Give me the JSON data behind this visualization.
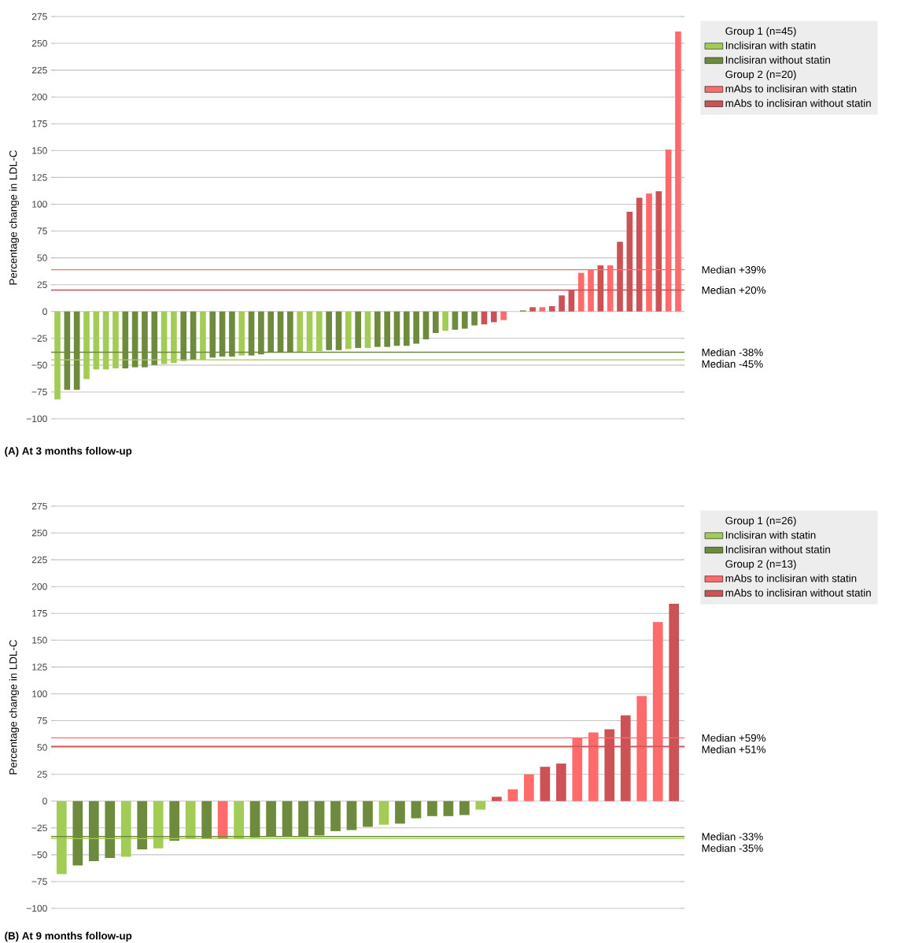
{
  "chart_data": [
    {
      "type": "bar",
      "title": "(A) At 3 months follow-up",
      "ylabel": "Percentage change in LDL-C",
      "categories": [
        null,
        null,
        null,
        null,
        null,
        null,
        null,
        null,
        null,
        null,
        null,
        null,
        null,
        null,
        null,
        null,
        null,
        null,
        null,
        null,
        null,
        null,
        null,
        null,
        null,
        null,
        null,
        null,
        null,
        null,
        null,
        null,
        null,
        null,
        null,
        null,
        null,
        null,
        null,
        null,
        null,
        null,
        null,
        null,
        null,
        null,
        null,
        null,
        null,
        null,
        null,
        null,
        null,
        null,
        null,
        null,
        null,
        null,
        null,
        null,
        null,
        null,
        null,
        null,
        null
      ],
      "series": [
        {
          "name": "Inclisiran with statin",
          "color": "#a3cc56",
          "values": [
            -82,
            null,
            null,
            -63,
            -54,
            -54,
            -53,
            null,
            null,
            null,
            null,
            -49,
            -48,
            null,
            null,
            -45,
            null,
            null,
            null,
            -41,
            null,
            null,
            null,
            null,
            null,
            -38,
            -37,
            -37,
            null,
            null,
            -35,
            null,
            -34,
            null,
            null,
            null,
            null,
            null,
            null,
            null,
            -18,
            null,
            null,
            null,
            null,
            null,
            null,
            null,
            null,
            null,
            null,
            null,
            null,
            null,
            null,
            null,
            null,
            null,
            null,
            null,
            null,
            null,
            null,
            null,
            null
          ]
        },
        {
          "name": "Inclisiran without statin",
          "color": "#6e8a3c",
          "values": [
            null,
            -73,
            -73,
            null,
            null,
            null,
            null,
            -53,
            -52,
            -52,
            -50,
            null,
            null,
            -46,
            -45,
            null,
            -43,
            -42,
            -42,
            null,
            -41,
            -40,
            -38,
            -38,
            -38,
            null,
            null,
            null,
            -36,
            -36,
            null,
            -34,
            null,
            -33,
            -33,
            -32,
            -32,
            -30,
            -26,
            -20,
            null,
            -17,
            -16,
            -13,
            null,
            null,
            null,
            null,
            1,
            null,
            null,
            null,
            null,
            null,
            null,
            null,
            null,
            null,
            null,
            null,
            null,
            null,
            null,
            null,
            null
          ]
        },
        {
          "name": "mAbs to inclisiran with statin",
          "color": "#ff6b6b",
          "values": [
            null,
            null,
            null,
            null,
            null,
            null,
            null,
            null,
            null,
            null,
            null,
            null,
            null,
            null,
            null,
            null,
            null,
            null,
            null,
            null,
            null,
            null,
            null,
            null,
            null,
            null,
            null,
            null,
            null,
            null,
            null,
            null,
            null,
            null,
            null,
            null,
            null,
            null,
            null,
            null,
            null,
            null,
            null,
            null,
            null,
            null,
            -8,
            0,
            null,
            null,
            4,
            null,
            null,
            null,
            36,
            39,
            null,
            43,
            null,
            null,
            null,
            110,
            null,
            151,
            261
          ]
        },
        {
          "name": "mAbs to inclisiran without statin",
          "color": "#cc5256",
          "values": [
            null,
            null,
            null,
            null,
            null,
            null,
            null,
            null,
            null,
            null,
            null,
            null,
            null,
            null,
            null,
            null,
            null,
            null,
            null,
            null,
            null,
            null,
            null,
            null,
            null,
            null,
            null,
            null,
            null,
            null,
            null,
            null,
            null,
            null,
            null,
            null,
            null,
            null,
            null,
            null,
            null,
            null,
            null,
            null,
            -12,
            -10,
            null,
            null,
            null,
            4,
            null,
            5,
            15,
            20,
            null,
            null,
            43,
            null,
            65,
            93,
            106,
            null,
            112,
            null,
            null
          ]
        }
      ],
      "ylim": [
        -100,
        275
      ],
      "yticks": [
        {
          "value": -100,
          "label": "−100"
        },
        {
          "value": -75,
          "label": "−75"
        },
        {
          "value": -50,
          "label": "−50"
        },
        {
          "value": -25,
          "label": "−25"
        },
        0,
        25,
        50,
        75,
        100,
        125,
        150,
        175,
        200,
        225,
        250,
        275
      ],
      "grid": "y",
      "legend": "top right",
      "annotations": [
        "Group 1 (n=45)",
        "Group 2 (n=20)"
      ],
      "ref_lines": [
        {
          "axis": "y",
          "value": 39,
          "label": "Median +39%",
          "color": "#ff6b6b"
        },
        {
          "axis": "y",
          "value": 20,
          "label": "Median +20%",
          "color": "#cc5256"
        },
        {
          "axis": "y",
          "value": -38,
          "label": "Median -38%",
          "color": "#6e8a3c"
        },
        {
          "axis": "y",
          "value": -45,
          "label": "Median -45%",
          "color": "#a3cc56"
        }
      ]
    },
    {
      "type": "bar",
      "title": "(B) At 9 months follow-up",
      "ylabel": "Percentage change in LDL-C",
      "categories": [
        null,
        null,
        null,
        null,
        null,
        null,
        null,
        null,
        null,
        null,
        null,
        null,
        null,
        null,
        null,
        null,
        null,
        null,
        null,
        null,
        null,
        null,
        null,
        null,
        null,
        null,
        null,
        null,
        null,
        null,
        null,
        null,
        null,
        null,
        null,
        null,
        null,
        null,
        null
      ],
      "series": [
        {
          "name": "Inclisiran with statin",
          "color": "#a3cc56",
          "values": [
            -68,
            null,
            null,
            null,
            -52,
            null,
            -44,
            null,
            -35,
            null,
            null,
            -35,
            null,
            null,
            null,
            null,
            null,
            null,
            null,
            null,
            -22,
            null,
            null,
            null,
            null,
            null,
            -8,
            null,
            null,
            null,
            null,
            null,
            null,
            null,
            null,
            null,
            null,
            null,
            null
          ]
        },
        {
          "name": "Inclisiran without statin",
          "color": "#6e8a3c",
          "values": [
            null,
            -60,
            -56,
            -53,
            null,
            -45,
            null,
            -37,
            null,
            -35,
            null,
            null,
            -34,
            -33,
            -33,
            -33,
            -32,
            -28,
            -27,
            -24,
            null,
            -21,
            -16,
            -14,
            -14,
            -13,
            null,
            null,
            null,
            null,
            null,
            null,
            null,
            null,
            null,
            null,
            null,
            null,
            null
          ]
        },
        {
          "name": "mAbs to inclisiran with statin",
          "color": "#ff6b6b",
          "values": [
            null,
            null,
            null,
            null,
            null,
            null,
            null,
            null,
            null,
            null,
            -35,
            null,
            null,
            null,
            null,
            null,
            null,
            null,
            null,
            null,
            null,
            null,
            null,
            null,
            null,
            null,
            null,
            null,
            11,
            25,
            null,
            null,
            59,
            64,
            null,
            null,
            98,
            167,
            null
          ]
        },
        {
          "name": "mAbs to inclisiran without statin",
          "color": "#cc5256",
          "values": [
            null,
            null,
            null,
            null,
            null,
            null,
            null,
            null,
            null,
            null,
            null,
            null,
            null,
            null,
            null,
            null,
            null,
            null,
            null,
            null,
            null,
            null,
            null,
            null,
            null,
            null,
            null,
            4,
            null,
            null,
            32,
            35,
            null,
            null,
            67,
            80,
            null,
            null,
            184
          ]
        }
      ],
      "ylim": [
        -100,
        275
      ],
      "yticks": [
        {
          "value": -100,
          "label": "−100"
        },
        {
          "value": -75,
          "label": "−75"
        },
        {
          "value": -50,
          "label": "−50"
        },
        {
          "value": -25,
          "label": "−25"
        },
        0,
        25,
        50,
        75,
        100,
        125,
        150,
        175,
        200,
        225,
        250,
        275
      ],
      "grid": "y",
      "legend": "top right",
      "annotations": [
        "Group 1 (n=26)",
        "Group 2 (n=13)"
      ],
      "ref_lines": [
        {
          "axis": "y",
          "value": 59,
          "label": "Median +59%",
          "color": "#ff6b6b"
        },
        {
          "axis": "y",
          "value": 51,
          "label": "Median +51%",
          "color": "#cc5256"
        },
        {
          "axis": "y",
          "value": -33,
          "label": "Median -33%",
          "color": "#6e8a3c"
        },
        {
          "axis": "y",
          "value": -35,
          "label": "Median -35%",
          "color": "#a3cc56"
        }
      ]
    }
  ]
}
